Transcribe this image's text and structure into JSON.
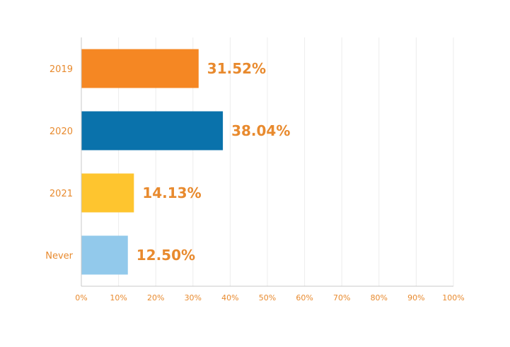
{
  "chart_data": {
    "type": "bar",
    "orientation": "horizontal",
    "categories": [
      "2019",
      "2020",
      "2021",
      "Never"
    ],
    "values": [
      31.52,
      38.04,
      14.13,
      12.5
    ],
    "data_labels": [
      "31.52%",
      "38.04%",
      "14.13%",
      "12.50%"
    ],
    "bar_colors": [
      "#f58723",
      "#0a72ab",
      "#fec52f",
      "#92c9eb"
    ],
    "label_color": "#e88a2e",
    "xlim": [
      0,
      100
    ],
    "x_ticks": [
      0,
      10,
      20,
      30,
      40,
      50,
      60,
      70,
      80,
      90,
      100
    ],
    "x_tick_labels": [
      "0%",
      "10%",
      "20%",
      "30%",
      "40%",
      "50%",
      "60%",
      "70%",
      "80%",
      "90%",
      "100%"
    ],
    "grid": true,
    "legend": "none",
    "title": "",
    "xlabel": "",
    "ylabel": ""
  }
}
